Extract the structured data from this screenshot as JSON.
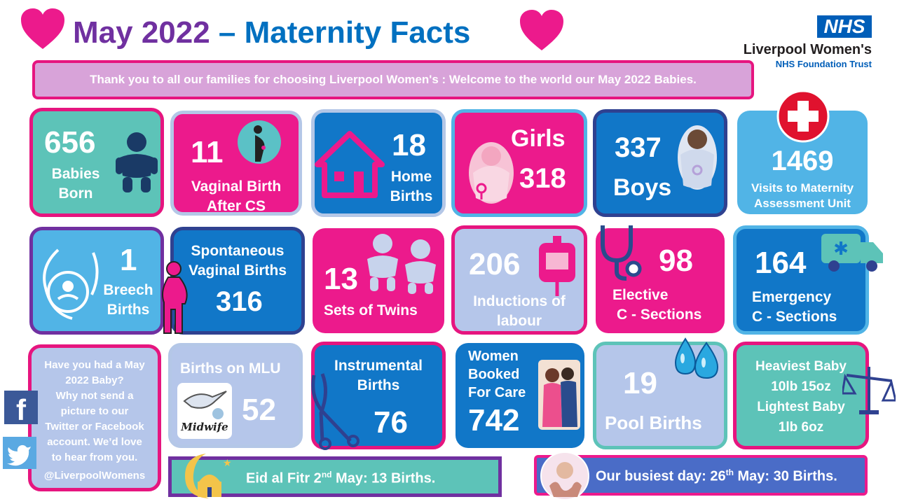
{
  "title": {
    "part1": "May 2022",
    "dash": " – ",
    "part2": "Maternity Facts"
  },
  "banner": "Thank you to all our families for choosing Liverpool Women's : Welcome to the world our May 2022 Babies.",
  "logo": {
    "nhs": "NHS",
    "org": "Liverpool Women's",
    "trust": "NHS Foundation Trust"
  },
  "stats": {
    "babies": {
      "value": "656",
      "l1": "Babies",
      "l2": "Born"
    },
    "vbac": {
      "value": "11",
      "l1": "Vaginal Birth",
      "l2": "After CS"
    },
    "home": {
      "value": "18",
      "l1": "Home",
      "l2": "Births"
    },
    "girls": {
      "label": "Girls",
      "value": "318"
    },
    "boys": {
      "value": "337",
      "label": "Boys"
    },
    "mau": {
      "value": "1469",
      "l1": "Visits to Maternity",
      "l2": "Assessment Unit"
    },
    "breech": {
      "value": "1",
      "l1": "Breech",
      "l2": "Births"
    },
    "svb": {
      "l1": "Spontaneous",
      "l2": "Vaginal Births",
      "value": "316"
    },
    "twins": {
      "value": "13",
      "label": "Sets of Twins"
    },
    "induction": {
      "value": "206",
      "l1": "Inductions of",
      "l2": "labour"
    },
    "elective": {
      "value": "98",
      "l1": "Elective",
      "l2": "C - Sections"
    },
    "emergency": {
      "value": "164",
      "l1": "Emergency",
      "l2": "C - Sections"
    },
    "mlu": {
      "label": "Births on MLU",
      "value": "52",
      "badge": "Midwife"
    },
    "instrumental": {
      "l1": "Instrumental",
      "l2": "Births",
      "value": "76"
    },
    "booked": {
      "l1": "Women",
      "l2": "Booked",
      "l3": "For Care",
      "value": "742"
    },
    "pool": {
      "value": "19",
      "label": "Pool Births"
    },
    "weights": {
      "l1": "Heaviest Baby",
      "l2": "10lb 15oz",
      "l3": "Lightest Baby",
      "l4": "1lb 6oz"
    }
  },
  "social": {
    "lines": [
      "Have you had a May",
      "2022 Baby?",
      "Why not send a",
      "picture to our",
      "Twitter or Facebook",
      "account.  We’d love",
      "to hear from you."
    ],
    "handle": "@LiverpoolWomens"
  },
  "eid": {
    "pre": "Eid al Fitr 2",
    "sup": "nd",
    "post": " May: 13 Births."
  },
  "busiest": {
    "pre": "Our busiest day: 26",
    "sup": "th",
    "post": " May: 30 Births."
  },
  "colors": {
    "pink": "#ec1a8c",
    "blue": "#1177c8",
    "teal": "#5dc3b8",
    "purple": "#7030a0",
    "nhs_blue": "#005eb8"
  },
  "icons": [
    "heart-icon",
    "baby-icon",
    "pregnant-icon",
    "house-icon",
    "baby-girl-icon",
    "baby-boy-icon",
    "first-aid-cross-icon",
    "breech-baby-icon",
    "pregnant-woman-icon",
    "twins-icon",
    "iv-bag-icon",
    "stethoscope-icon",
    "ambulance-icon",
    "stork-icon",
    "forceps-icon",
    "women-icon",
    "water-drops-icon",
    "scales-icon",
    "facebook-icon",
    "twitter-icon",
    "moon-mosque-icon",
    "newborn-hands-icon"
  ]
}
